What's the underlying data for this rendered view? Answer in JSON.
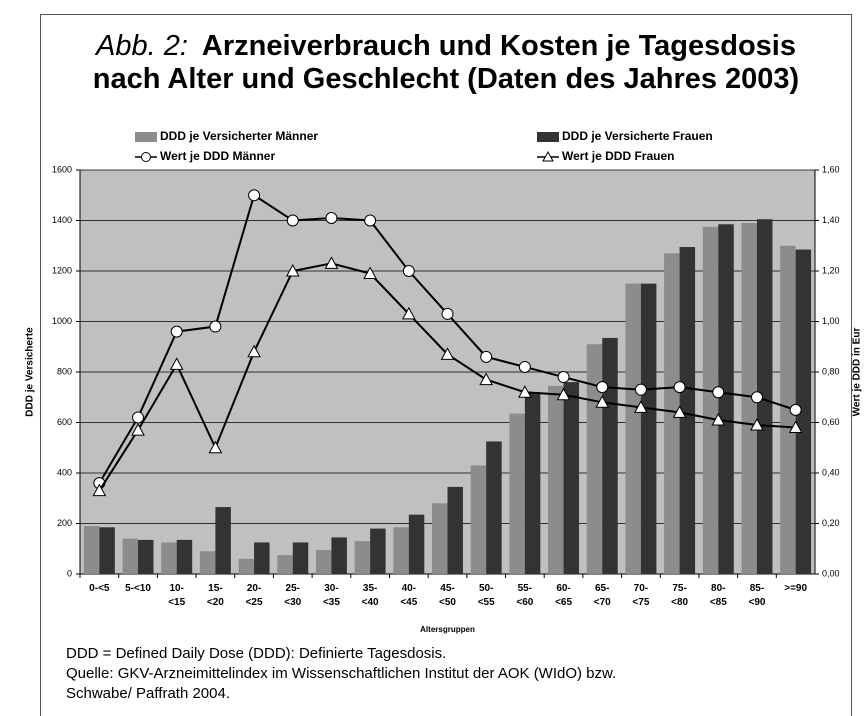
{
  "chart_data": {
    "type": "bar",
    "title_prefix": "Abb. 2:",
    "title": "Arzneiverbrauch und Kosten je Tagesdosis\nnach Alter und Geschlecht (Daten des Jahres 2003)",
    "x_label": "Altersgruppen",
    "y_label": "DDD je Versicherte",
    "y2_label": "Wert je DDD in Eur",
    "categories": [
      "0-<5",
      "5-<10",
      "10-\n<15",
      "15-\n<20",
      "20-\n<25",
      "25-\n<30",
      "30-\n<35",
      "35-\n<40",
      "40-\n<45",
      "45-\n<50",
      "50-\n<55",
      "55-\n<60",
      "60-\n<65",
      "65-\n<70",
      "70-\n<75",
      "75-\n<80",
      "80-\n<85",
      "85-\n<90",
      ">=90"
    ],
    "series": [
      {
        "name": "DDD je Versicherter Männer",
        "type": "bar",
        "color": "#8c8c8c",
        "values": [
          190,
          140,
          125,
          90,
          60,
          75,
          95,
          130,
          185,
          280,
          430,
          635,
          745,
          910,
          1150,
          1270,
          1375,
          1390,
          1300
        ]
      },
      {
        "name": "DDD je Versicherte Frauen",
        "type": "bar",
        "color": "#333333",
        "values": [
          185,
          135,
          135,
          265,
          125,
          125,
          145,
          180,
          235,
          345,
          525,
          720,
          760,
          935,
          1150,
          1295,
          1385,
          1405,
          1285
        ]
      },
      {
        "name": "Wert je DDD Männer",
        "type": "line",
        "axis": "y2",
        "color": "#000000",
        "marker": "circle",
        "values": [
          0.36,
          0.62,
          0.96,
          0.98,
          1.5,
          1.4,
          1.41,
          1.4,
          1.2,
          1.03,
          0.86,
          0.82,
          0.78,
          0.74,
          0.73,
          0.74,
          0.72,
          0.7,
          0.65
        ]
      },
      {
        "name": "Wert je DDD Frauen",
        "type": "line",
        "axis": "y2",
        "color": "#000000",
        "marker": "triangle",
        "values": [
          0.33,
          0.57,
          0.83,
          0.5,
          0.88,
          1.2,
          1.23,
          1.19,
          1.03,
          0.87,
          0.77,
          0.72,
          0.71,
          0.68,
          0.66,
          0.64,
          0.61,
          0.59,
          0.58
        ]
      }
    ],
    "ylim": [
      0,
      1600
    ],
    "yticks": [
      0,
      200,
      400,
      600,
      800,
      1000,
      1200,
      1400,
      1600
    ],
    "y2lim": [
      0,
      1.6
    ],
    "y2ticks": [
      {
        "value": 0,
        "label": "0,00"
      },
      {
        "value": 0.2,
        "label": "0,20"
      },
      {
        "value": 0.4,
        "label": "0,40"
      },
      {
        "value": 0.6,
        "label": "0,60"
      },
      {
        "value": 0.8,
        "label": "0,80"
      },
      {
        "value": 1.0,
        "label": "1,00"
      },
      {
        "value": 1.2,
        "label": "1,20"
      },
      {
        "value": 1.4,
        "label": "1,40"
      },
      {
        "value": 1.6,
        "label": "1,60"
      }
    ],
    "grid": true,
    "background": "#c0c0c0",
    "notes": [
      "DDD = Defined Daily Dose (DDD): Definierte Tagesdosis.",
      "Quelle: GKV-Arzneimittelindex im Wissenschaftlichen Institut der AOK (WIdO) bzw.\nSchwabe/ Paffrath 2004."
    ]
  }
}
